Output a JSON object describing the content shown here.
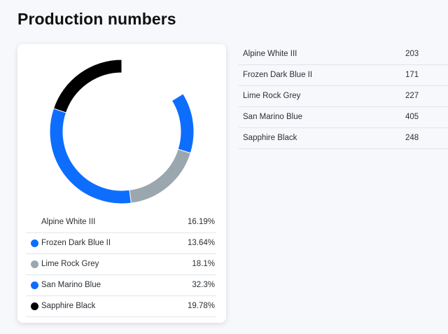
{
  "page": {
    "title": "Production numbers"
  },
  "chart_data": {
    "type": "pie",
    "categories": [
      "Alpine White III",
      "Frozen Dark Blue II",
      "Lime Rock Grey",
      "San Marino Blue",
      "Sapphire Black"
    ],
    "values": [
      203,
      171,
      227,
      405,
      248
    ],
    "percentages": [
      "16.19%",
      "13.64%",
      "18.1%",
      "32.3%",
      "19.78%"
    ],
    "colors": [
      "#ffffff",
      "#0d6efd",
      "#9ba7ae",
      "#0d6efd",
      "#000000"
    ],
    "donut": true
  },
  "legend": [
    {
      "label": "Alpine White III",
      "pct": "16.19%",
      "color": "#ffffff"
    },
    {
      "label": "Frozen Dark Blue II",
      "pct": "13.64%",
      "color": "#0d6efd"
    },
    {
      "label": "Lime Rock Grey",
      "pct": "18.1%",
      "color": "#9ba7ae"
    },
    {
      "label": "San Marino Blue",
      "pct": "32.3%",
      "color": "#0d6efd"
    },
    {
      "label": "Sapphire Black",
      "pct": "19.78%",
      "color": "#000000"
    }
  ],
  "table": [
    {
      "name": "Alpine White III",
      "value": "203"
    },
    {
      "name": "Frozen Dark Blue II",
      "value": "171"
    },
    {
      "name": "Lime Rock Grey",
      "value": "227"
    },
    {
      "name": "San Marino Blue",
      "value": "405"
    },
    {
      "name": "Sapphire Black",
      "value": "248"
    }
  ]
}
